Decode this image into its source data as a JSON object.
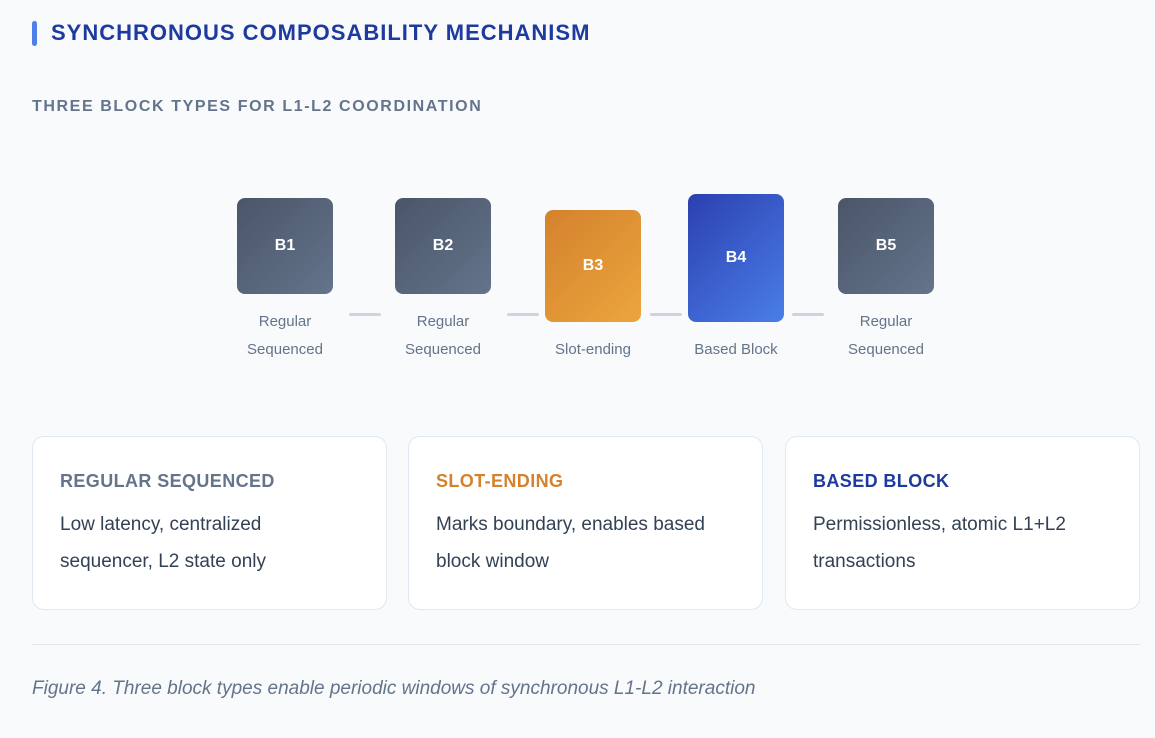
{
  "title": "SYNCHRONOUS COMPOSABILITY MECHANISM",
  "subtitle": "THREE BLOCK TYPES FOR L1-L2 COORDINATION",
  "blocks": [
    {
      "id": "B1",
      "line1": "Regular",
      "line2": "Sequenced"
    },
    {
      "id": "B2",
      "line1": "Regular",
      "line2": "Sequenced"
    },
    {
      "id": "B3",
      "line1": "",
      "line2": "Slot-ending"
    },
    {
      "id": "B4",
      "line1": "",
      "line2": "Based Block"
    },
    {
      "id": "B5",
      "line1": "Regular",
      "line2": "Sequenced"
    }
  ],
  "cards": [
    {
      "title": "REGULAR SEQUENCED",
      "color": "#64748b",
      "text": "Low latency, centralized sequencer, L2 state only"
    },
    {
      "title": "SLOT-ENDING",
      "color": "#d4822d",
      "text": "Marks boundary, enables based block window"
    },
    {
      "title": "BASED BLOCK",
      "color": "#1e3a9e",
      "text": "Permissionless, atomic L1+L2 transactions"
    }
  ],
  "caption": "Figure 4. Three block types enable periodic windows of synchronous L1-L2 interaction"
}
